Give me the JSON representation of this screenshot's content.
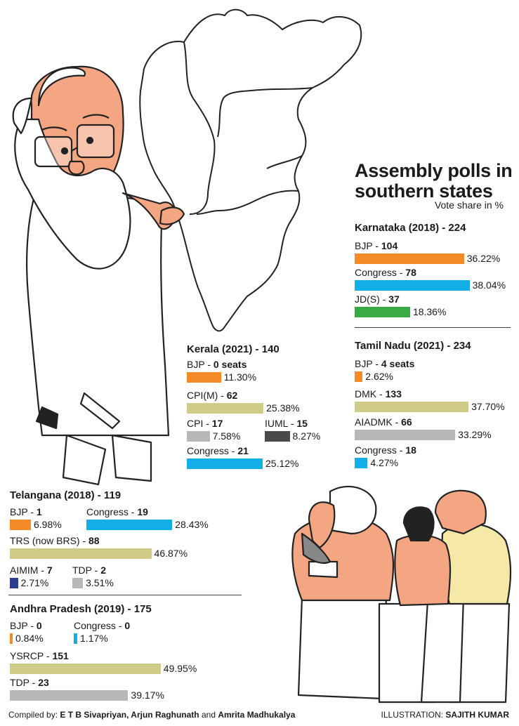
{
  "header": {
    "title_line1": "Assembly polls in",
    "title_line2": "southern states",
    "subtitle": "Vote share in %"
  },
  "colors": {
    "BJP": "#f58a28",
    "Congress": "#14aee6",
    "JD(S)": "#3aaa45",
    "regional_olive": "#cfcc8a",
    "grey": "#b7b7b7",
    "dark_grey": "#4a4a4a",
    "AIMIM": "#2b3d8f"
  },
  "chart_data": [
    {
      "type": "bar",
      "state": "Karnataka (2018)",
      "total_seats": "224",
      "heading": "Karnataka (2018) - 224",
      "value_unit": "%",
      "series": [
        {
          "name": "BJP",
          "seats": "104",
          "value": 36.22
        },
        {
          "name": "Congress",
          "seats": "78",
          "value": 38.04
        },
        {
          "name": "JD(S)",
          "seats": "37",
          "value": 18.36
        }
      ]
    },
    {
      "type": "bar",
      "state": "Kerala (2021)",
      "total_seats": "140",
      "heading": "Kerala (2021) - 140",
      "value_unit": "%",
      "series": [
        {
          "name": "BJP",
          "seats": "0 seats",
          "value": 11.3
        },
        {
          "name": "CPI(M)",
          "seats": "62",
          "value": 25.38
        },
        {
          "name": "CPI",
          "seats": "17",
          "value": 7.58
        },
        {
          "name": "IUML",
          "seats": "15",
          "value": 8.27
        },
        {
          "name": "Congress",
          "seats": "21",
          "value": 25.12
        }
      ]
    },
    {
      "type": "bar",
      "state": "Tamil Nadu (2021)",
      "total_seats": "234",
      "heading": "Tamil Nadu (2021) - 234",
      "value_unit": "%",
      "series": [
        {
          "name": "BJP",
          "seats": "4 seats",
          "value": 2.62
        },
        {
          "name": "DMK",
          "seats": "133",
          "value": 37.7
        },
        {
          "name": "AIADMK",
          "seats": "66",
          "value": 33.29
        },
        {
          "name": "Congress",
          "seats": "18",
          "value": 4.27
        }
      ]
    },
    {
      "type": "bar",
      "state": "Telangana (2018)",
      "total_seats": "119",
      "heading": "Telangana (2018) - 119",
      "value_unit": "%",
      "series": [
        {
          "name": "BJP",
          "seats": "1",
          "value": 6.98
        },
        {
          "name": "Congress",
          "seats": "19",
          "value": 28.43
        },
        {
          "name": "TRS (now BRS)",
          "seats": "88",
          "value": 46.87
        },
        {
          "name": "AIMIM",
          "seats": "7",
          "value": 2.71
        },
        {
          "name": "TDP",
          "seats": "2",
          "value": 3.51
        }
      ]
    },
    {
      "type": "bar",
      "state": "Andhra Pradesh (2019)",
      "total_seats": "175",
      "heading": "Andhra Pradesh (2019) - 175",
      "value_unit": "%",
      "series": [
        {
          "name": "BJP",
          "seats": "0",
          "value": 0.84
        },
        {
          "name": "Congress",
          "seats": "0",
          "value": 1.17
        },
        {
          "name": "YSRCP",
          "seats": "151",
          "value": 49.95
        },
        {
          "name": "TDP",
          "seats": "23",
          "value": 39.17
        }
      ]
    }
  ],
  "footer": {
    "compiled_prefix": "Compiled by:",
    "compilers": "E T B Sivapriyan, Arjun Raghunath",
    "and_word": "and",
    "compiler_last": "Amrita Madhukalya",
    "illustration_prefix": "ILLUSTRATION:",
    "illustrator": "SAJITH KUMAR"
  }
}
